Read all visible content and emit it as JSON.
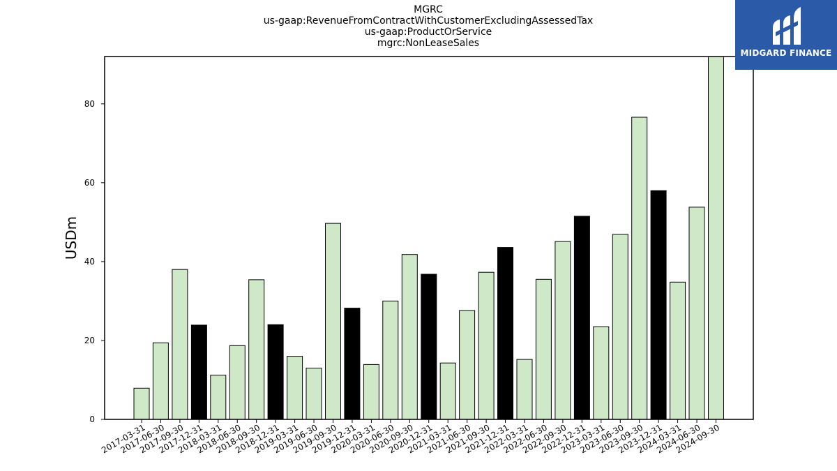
{
  "chart_data": {
    "type": "bar",
    "title_lines": [
      "MGRC",
      "us-gaap:RevenueFromContractWithCustomerExcludingAssessedTax",
      "us-gaap:ProductOrService",
      "mgrc:NonLeaseSales"
    ],
    "ylabel": "USDm",
    "xlabel": "",
    "ylim": [
      0,
      92
    ],
    "yticks": [
      0,
      20,
      40,
      60,
      80
    ],
    "grid": false,
    "categories": [
      "2017-03-31",
      "2017-06-30",
      "2017-09-30",
      "2017-12-31",
      "2018-03-31",
      "2018-06-30",
      "2018-09-30",
      "2018-12-31",
      "2019-03-31",
      "2019-06-30",
      "2019-09-30",
      "2019-12-31",
      "2020-03-31",
      "2020-06-30",
      "2020-09-30",
      "2020-12-31",
      "2021-03-31",
      "2021-06-30",
      "2021-09-30",
      "2021-12-31",
      "2022-03-31",
      "2022-06-30",
      "2022-09-30",
      "2022-12-31",
      "2023-03-31",
      "2023-06-30",
      "2023-09-30",
      "2023-12-31",
      "2024-03-31",
      "2024-06-30",
      "2024-09-30"
    ],
    "values": [
      7.9,
      19.4,
      38.0,
      23.9,
      11.2,
      18.7,
      35.4,
      24.0,
      16.0,
      13.0,
      49.7,
      28.2,
      13.9,
      30.0,
      41.8,
      36.8,
      14.3,
      27.6,
      37.3,
      43.6,
      15.2,
      35.5,
      45.1,
      51.5,
      23.5,
      46.9,
      76.6,
      58.0,
      34.8,
      53.8,
      92.0
    ],
    "bar_colors": {
      "quarter": "#cfe8c8",
      "year_end": "#000000",
      "edge": "#000000"
    },
    "year_end_pattern": "12-31 bars are filled black"
  },
  "logo": {
    "text": "MIDGARD FINANCE",
    "background": "#2b5aa8"
  }
}
